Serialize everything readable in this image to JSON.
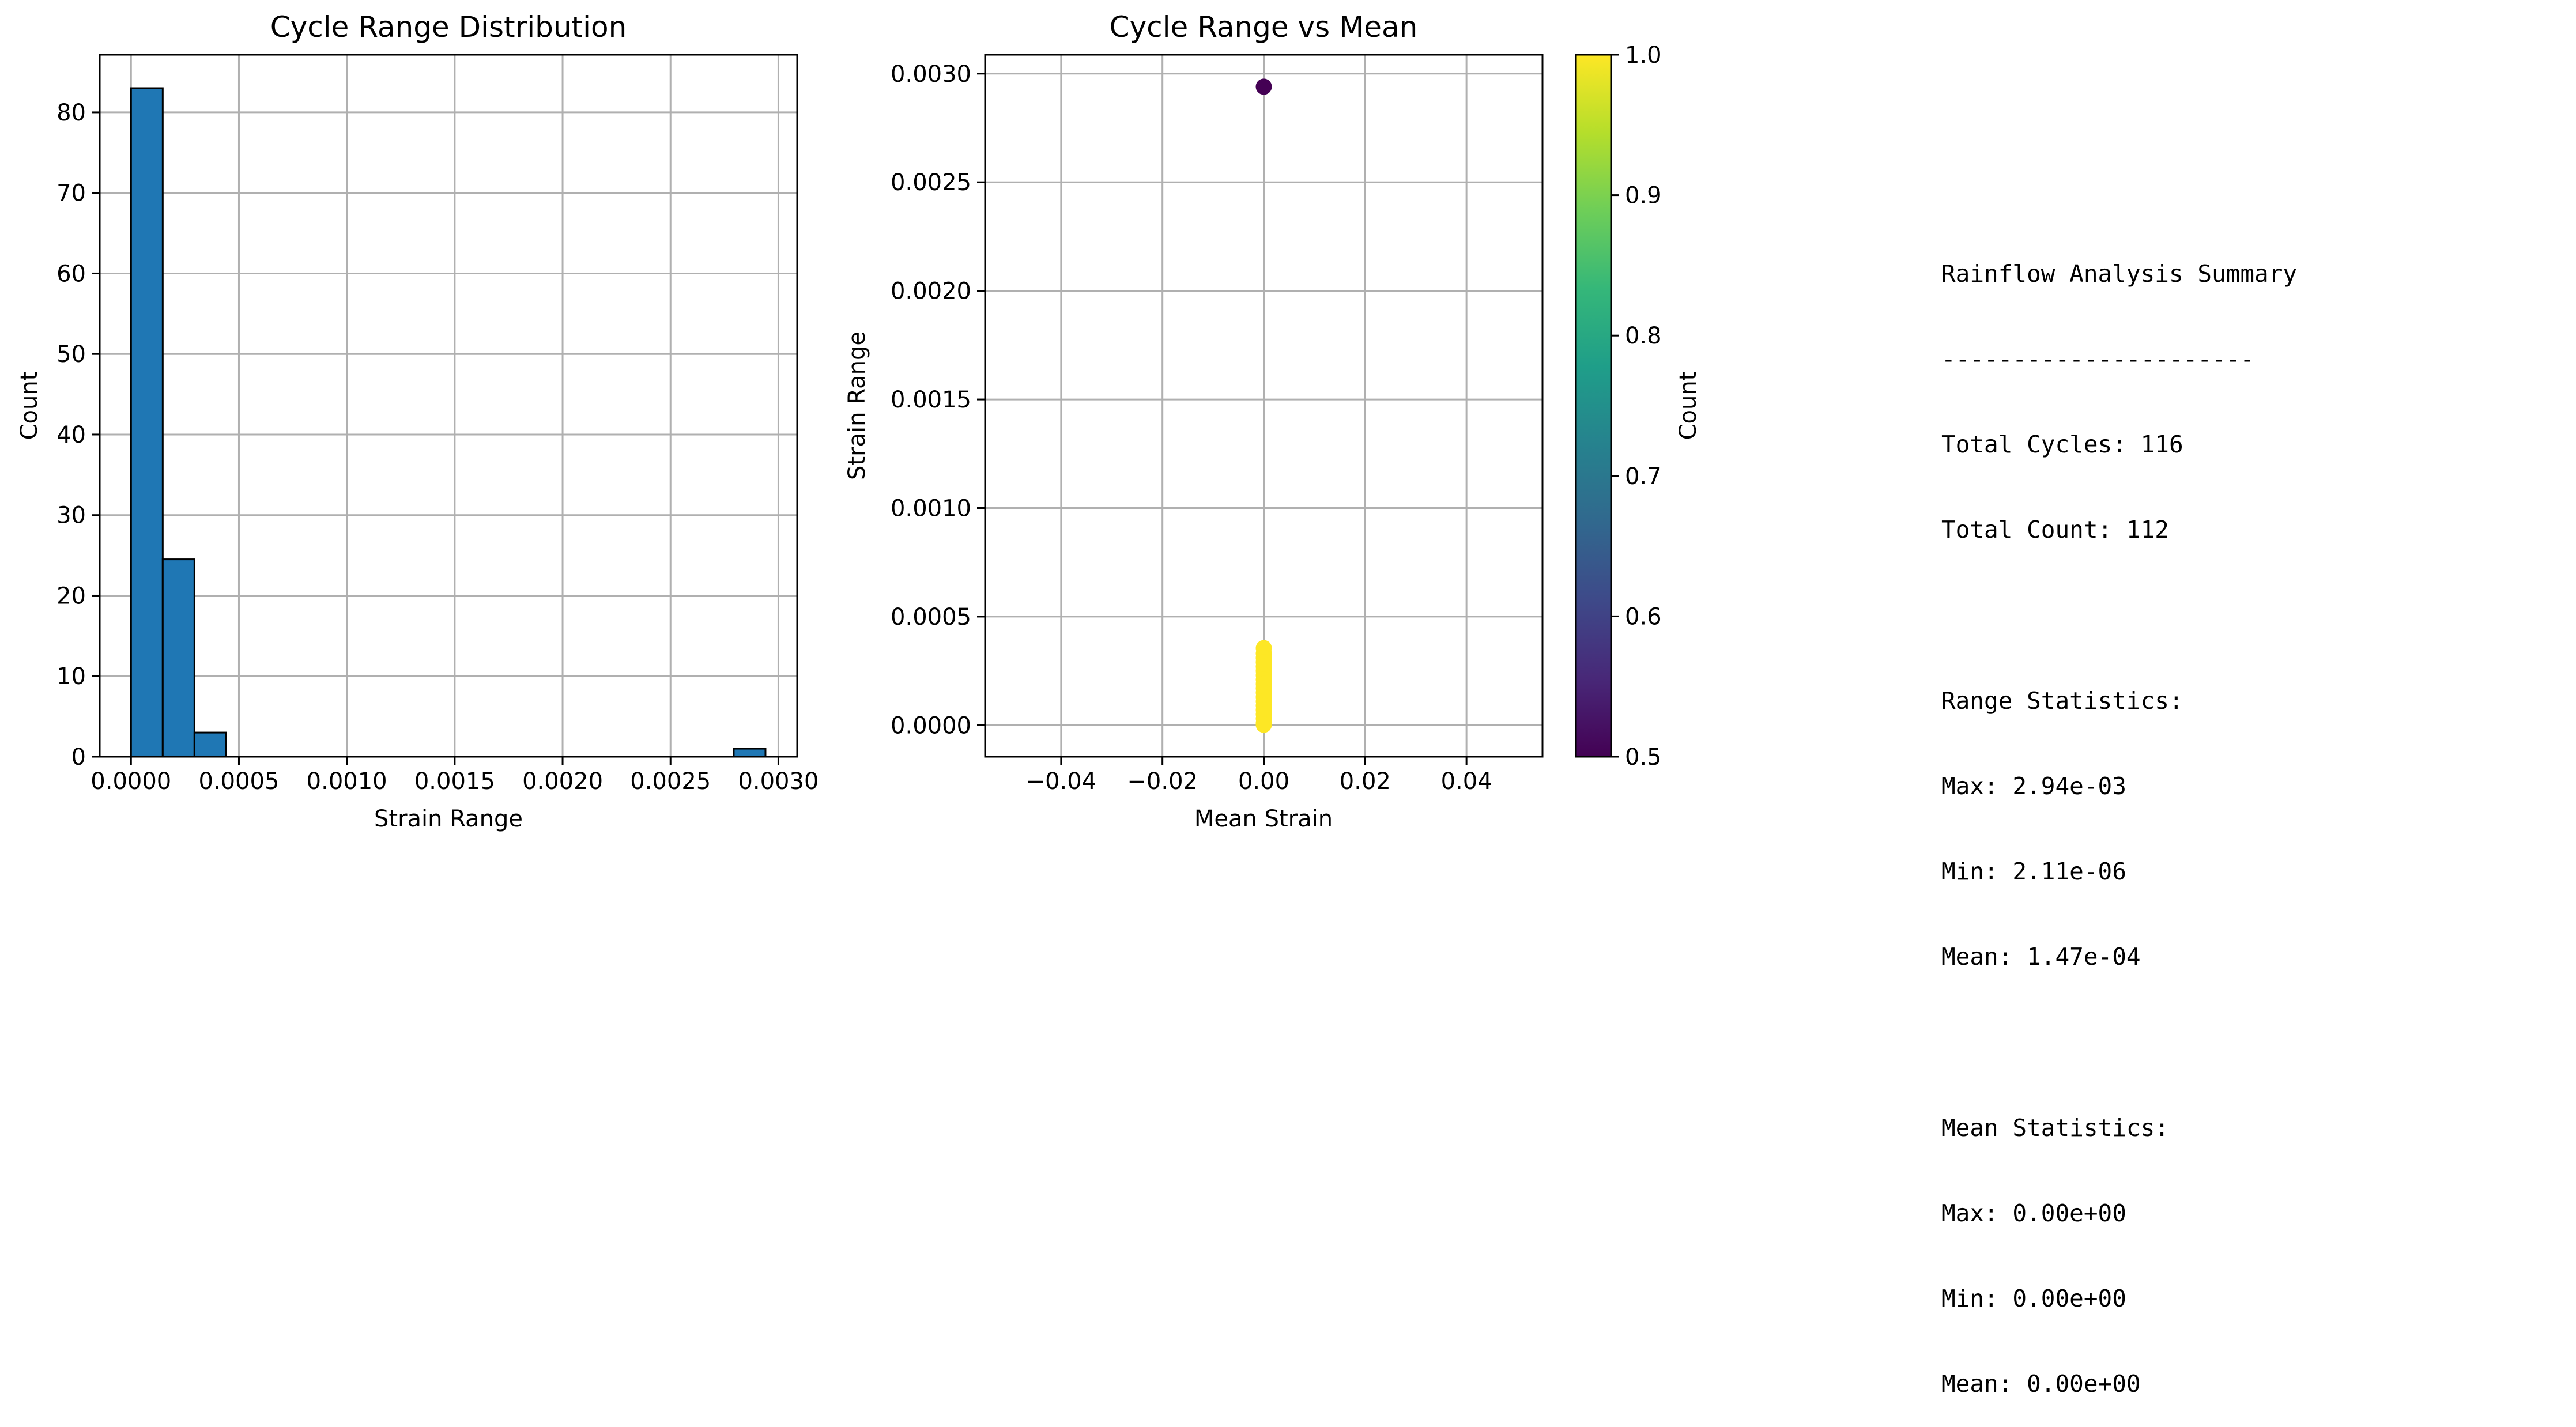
{
  "colors": {
    "bar_fill": "#1f77b4",
    "bar_edge": "#000000",
    "grid": "#b0b0b0",
    "viridis": [
      "#440154",
      "#482878",
      "#3e4989",
      "#31688e",
      "#26828e",
      "#1f9e89",
      "#35b779",
      "#6ece58",
      "#b5de2b",
      "#fde725"
    ]
  },
  "chart_data": [
    {
      "type": "bar",
      "title": "Cycle Range Distribution",
      "xlabel": "Strain Range",
      "ylabel": "Count",
      "xlim": [
        -0.000145,
        0.003087
      ],
      "ylim": [
        0,
        87.15
      ],
      "xticks": [
        0.0,
        0.0005,
        0.001,
        0.0015,
        0.002,
        0.0025,
        0.003
      ],
      "xtick_labels": [
        "0.0000",
        "0.0005",
        "0.0010",
        "0.0015",
        "0.0020",
        "0.0025",
        "0.0030"
      ],
      "yticks": [
        0,
        10,
        20,
        30,
        40,
        50,
        60,
        70,
        80
      ],
      "ytick_labels": [
        "0",
        "10",
        "20",
        "30",
        "40",
        "50",
        "60",
        "70",
        "80"
      ],
      "grid": true,
      "bin_edges": [
        0.0,
        0.000147,
        0.000294,
        0.000441,
        0.000588,
        0.000735,
        0.000882,
        0.001029,
        0.001176,
        0.001323,
        0.00147,
        0.001617,
        0.001764,
        0.001911,
        0.002058,
        0.002205,
        0.002352,
        0.002499,
        0.002646,
        0.002793,
        0.00294
      ],
      "values": [
        83,
        24.5,
        3,
        0,
        0,
        0,
        0,
        0,
        0,
        0,
        0,
        0,
        0,
        0,
        0,
        0,
        0,
        0,
        0,
        1
      ]
    },
    {
      "type": "scatter",
      "title": "Cycle Range vs Mean",
      "xlabel": "Mean Strain",
      "ylabel": "Strain Range",
      "xlim": [
        -0.055,
        0.055
      ],
      "ylim": [
        -0.000145,
        0.003087
      ],
      "xticks": [
        -0.04,
        -0.02,
        0.0,
        0.02,
        0.04
      ],
      "xtick_labels": [
        "−0.04",
        "−0.02",
        "0.00",
        "0.02",
        "0.04"
      ],
      "yticks": [
        0.0,
        0.0005,
        0.001,
        0.0015,
        0.002,
        0.0025,
        0.003
      ],
      "ytick_labels": [
        "0.0000",
        "0.0005",
        "0.0010",
        "0.0015",
        "0.0020",
        "0.0025",
        "0.0030"
      ],
      "grid": true,
      "points": [
        {
          "x": 0.0,
          "y": 0.00294,
          "c": 0.5
        },
        {
          "x": 0.0,
          "y": 0.000355,
          "c": 1.0
        },
        {
          "x": 0.0,
          "y": 0.00033,
          "c": 1.0
        },
        {
          "x": 0.0,
          "y": 0.00031,
          "c": 1.0
        },
        {
          "x": 0.0,
          "y": 0.00029,
          "c": 1.0
        },
        {
          "x": 0.0,
          "y": 0.00027,
          "c": 1.0
        },
        {
          "x": 0.0,
          "y": 0.00025,
          "c": 1.0
        },
        {
          "x": 0.0,
          "y": 0.00023,
          "c": 1.0
        },
        {
          "x": 0.0,
          "y": 0.00021,
          "c": 1.0
        },
        {
          "x": 0.0,
          "y": 0.00019,
          "c": 1.0
        },
        {
          "x": 0.0,
          "y": 0.00017,
          "c": 1.0
        },
        {
          "x": 0.0,
          "y": 0.00015,
          "c": 1.0
        },
        {
          "x": 0.0,
          "y": 0.00013,
          "c": 1.0
        },
        {
          "x": 0.0,
          "y": 0.00011,
          "c": 1.0
        },
        {
          "x": 0.0,
          "y": 9e-05,
          "c": 1.0
        },
        {
          "x": 0.0,
          "y": 7e-05,
          "c": 1.0
        },
        {
          "x": 0.0,
          "y": 5e-05,
          "c": 1.0
        },
        {
          "x": 0.0,
          "y": 3e-05,
          "c": 1.0
        },
        {
          "x": 0.0,
          "y": 1e-05,
          "c": 1.0
        },
        {
          "x": 0.0,
          "y": 2.1e-06,
          "c": 1.0
        }
      ],
      "colorbar": {
        "label": "Count",
        "range": [
          0.5,
          1.0
        ],
        "ticks": [
          0.5,
          0.6,
          0.7,
          0.8,
          0.9,
          1.0
        ],
        "tick_labels": [
          "0.5",
          "0.6",
          "0.7",
          "0.8",
          "0.9",
          "1.0"
        ],
        "colormap": "viridis"
      }
    }
  ],
  "summary": {
    "lines": [
      "Rainflow Analysis Summary",
      "----------------------",
      "Total Cycles: 116",
      "Total Count: 112",
      "",
      "Range Statistics:",
      "Max: 2.94e-03",
      "Min: 2.11e-06",
      "Mean: 1.47e-04",
      "",
      "Mean Statistics:",
      "Max: 0.00e+00",
      "Min: 0.00e+00",
      "Mean: 0.00e+00"
    ]
  }
}
